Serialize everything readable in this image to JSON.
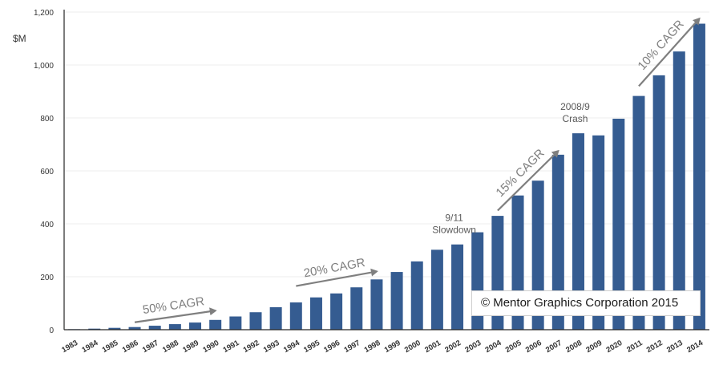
{
  "chart_data": {
    "type": "bar",
    "title": "",
    "xlabel": "",
    "ylabel": "$M",
    "ylim": [
      0,
      1200
    ],
    "yticks": [
      0,
      200,
      400,
      600,
      800,
      1000,
      1200
    ],
    "ytick_labels": [
      "0",
      "200",
      "400",
      "600",
      "800",
      "1,000",
      "1,200"
    ],
    "grid": true,
    "categories": [
      "1983",
      "1984",
      "1985",
      "1986",
      "1987",
      "1988",
      "1989",
      "1990",
      "1991",
      "1992",
      "1993",
      "1994",
      "1995",
      "1996",
      "1997",
      "1998",
      "1999",
      "2000",
      "2001",
      "2002",
      "2003",
      "2004",
      "2005",
      "2006",
      "2007",
      "2008",
      "2009",
      "2020",
      "2011",
      "2012",
      "2013",
      "2014"
    ],
    "values": [
      2,
      4,
      7,
      10,
      15,
      21,
      27,
      37,
      50,
      66,
      85,
      103,
      122,
      137,
      160,
      190,
      218,
      258,
      302,
      322,
      368,
      430,
      507,
      563,
      661,
      742,
      734,
      797,
      883,
      961,
      1051,
      1156
    ],
    "bar_color": "#355c91",
    "annotations": [
      {
        "lines": [
          "9/11",
          "Slowdown"
        ],
        "category": "2002"
      },
      {
        "lines": [
          "2008/9",
          "Crash"
        ],
        "category": "2008"
      }
    ],
    "cagr_arrows": [
      {
        "label": "50% CAGR",
        "from": [
          "1986",
          28
        ],
        "to": [
          "1990",
          72
        ]
      },
      {
        "label": "20% CAGR",
        "from": [
          "1994",
          165
        ],
        "to": [
          "1998",
          220
        ]
      },
      {
        "label": "15% CAGR",
        "from": [
          "2004",
          450
        ],
        "to": [
          "2007",
          675
        ]
      },
      {
        "label": "10% CAGR",
        "from": [
          "2011",
          920
        ],
        "to": [
          "2014",
          1175
        ]
      }
    ]
  },
  "copyright": "© Mentor Graphics Corporation 2015"
}
